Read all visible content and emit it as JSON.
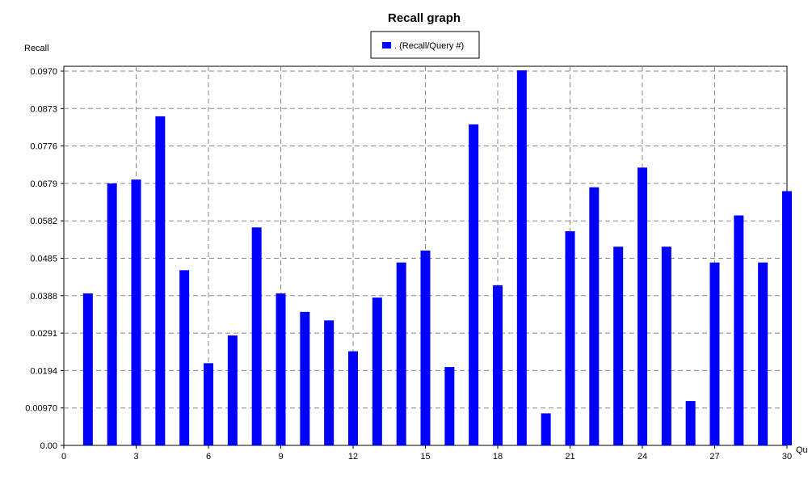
{
  "chart_data": {
    "type": "bar",
    "title": "Recall graph",
    "ylabel": "Recall",
    "xlabel": "Qu",
    "legend": {
      "entries": [
        {
          "label": ". (Recall/Query #)",
          "color": "#0000ff"
        }
      ],
      "placement": "top-center"
    },
    "bar_color": "#0000ff",
    "grid": true,
    "xlim": [
      0,
      30
    ],
    "ylim": [
      0,
      0.097
    ],
    "x_ticks": [
      "0",
      "3",
      "6",
      "9",
      "12",
      "15",
      "18",
      "21",
      "24",
      "27",
      "30"
    ],
    "y_ticks": [
      "0.00",
      "0.00970",
      "0.0194",
      "0.0291",
      "0.0388",
      "0.0485",
      "0.0582",
      "0.0679",
      "0.0776",
      "0.0873",
      "0.0970"
    ],
    "series": [
      {
        "name": ". (Recall/Query #)",
        "x": [
          1,
          2,
          3,
          4,
          5,
          6,
          7,
          8,
          9,
          10,
          11,
          12,
          13,
          14,
          15,
          16,
          17,
          18,
          19,
          20,
          21,
          22,
          23,
          24,
          25,
          26,
          27,
          28,
          29,
          30
        ],
        "values": [
          0.0394,
          0.0679,
          0.0689,
          0.0853,
          0.0454,
          0.0213,
          0.0285,
          0.0565,
          0.0394,
          0.0346,
          0.0324,
          0.0244,
          0.0383,
          0.0474,
          0.0505,
          0.0203,
          0.0832,
          0.0415,
          0.0972,
          0.0083,
          0.0555,
          0.0669,
          0.0515,
          0.072,
          0.0515,
          0.0115,
          0.0474,
          0.0596,
          0.0474,
          0.0659
        ]
      }
    ]
  }
}
